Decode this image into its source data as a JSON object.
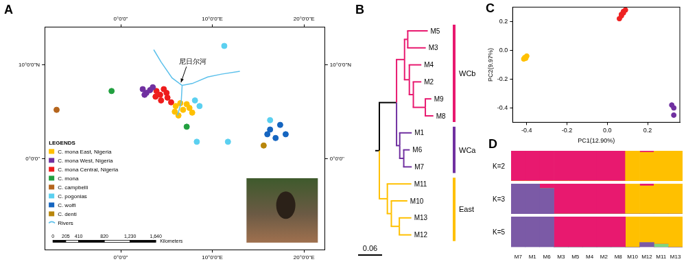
{
  "panel_labels": [
    "A",
    "B",
    "C",
    "D"
  ],
  "map": {
    "xlim": [
      -8.3,
      22.3
    ],
    "ylim": [
      -9.7,
      14
    ],
    "xticks": [
      {
        "value": 0,
        "label": "0°0'0\""
      },
      {
        "value": 10,
        "label": "10°0'0\"E"
      },
      {
        "value": 20,
        "label": "20°0'0\"E"
      }
    ],
    "yticks": [
      {
        "value": 0,
        "label": "0°0'0\""
      },
      {
        "value": 10,
        "label": "10°0'0\"N"
      }
    ],
    "legend_title": "LEGENDS",
    "groups": [
      {
        "name": "C. mona East, Nigeria",
        "color": "#ffc000",
        "points": [
          [
            5.9,
            5.0
          ],
          [
            6.3,
            4.6
          ],
          [
            6.8,
            5.2
          ],
          [
            7.2,
            5.8
          ],
          [
            7.5,
            5.4
          ],
          [
            6.5,
            5.9
          ],
          [
            7.8,
            4.9
          ],
          [
            6.0,
            5.6
          ]
        ]
      },
      {
        "name": "C. mona West, Nigeria",
        "color": "#7030a0",
        "points": [
          [
            2.4,
            7.4
          ],
          [
            2.8,
            7.0
          ],
          [
            3.2,
            7.3
          ],
          [
            2.6,
            6.8
          ],
          [
            3.5,
            7.6
          ]
        ]
      },
      {
        "name": "C. mona Central, Nigeria",
        "color": "#ee1c1c",
        "points": [
          [
            3.9,
            7.2
          ],
          [
            4.3,
            6.8
          ],
          [
            4.7,
            7.4
          ],
          [
            5.1,
            6.5
          ],
          [
            5.5,
            6.0
          ],
          [
            4.4,
            6.2
          ],
          [
            5.0,
            7.0
          ],
          [
            3.8,
            6.6
          ]
        ]
      },
      {
        "name": "C. mona",
        "color": "#22a040",
        "points": [
          [
            -1.0,
            7.2
          ],
          [
            7.2,
            3.4
          ]
        ]
      },
      {
        "name": "C. campbelli",
        "color": "#b5651d",
        "points": [
          [
            -7.0,
            5.2
          ]
        ]
      },
      {
        "name": "C. pogonias",
        "color": "#5bd0f0",
        "points": [
          [
            8.1,
            6.2
          ],
          [
            8.6,
            5.6
          ],
          [
            8.3,
            1.8
          ],
          [
            11.7,
            1.8
          ],
          [
            11.3,
            12.0
          ],
          [
            16.3,
            4.1
          ]
        ]
      },
      {
        "name": "C. wolfi",
        "color": "#1565c0",
        "points": [
          [
            16.3,
            3.1
          ],
          [
            17.4,
            3.6
          ],
          [
            16.9,
            2.2
          ],
          [
            18.0,
            2.6
          ],
          [
            16.0,
            2.6
          ]
        ]
      },
      {
        "name": "C. denti",
        "color": "#b8860b",
        "points": [
          [
            15.6,
            1.4
          ]
        ]
      }
    ],
    "rivers": {
      "name": "Rivers",
      "color": "#5bc0eb",
      "lines": [
        [
          [
            3.6,
            11.6
          ],
          [
            4.4,
            10.3
          ],
          [
            5.6,
            8.6
          ],
          [
            6.7,
            7.8
          ],
          [
            6.6,
            6.0
          ],
          [
            6.2,
            4.6
          ]
        ],
        [
          [
            13.0,
            9.3
          ],
          [
            11.0,
            9.0
          ],
          [
            9.5,
            8.7
          ],
          [
            7.8,
            8.0
          ],
          [
            6.7,
            7.8
          ]
        ]
      ]
    },
    "annotation": {
      "text": "尼日尔河",
      "points_to": [
        6.5,
        7.9
      ]
    },
    "scale_bar": {
      "ticks": [
        0,
        205,
        410,
        820,
        {
          "value": 1230,
          "label": "1,230"
        },
        {
          "value": 1640,
          "label": "1,640"
        }
      ],
      "unit": "Kilometers"
    }
  },
  "tree": {
    "scale_bar": 0.06,
    "root": {
      "color": "#000000",
      "children": [
        {
          "length": 0.043,
          "color": "#000000",
          "children": [
            {
              "length": 0.02,
              "color": "#e8196f",
              "children": [
                {
                  "length": 0.008,
                  "children": [
                    {
                      "name": "M5",
                      "length": 0.05
                    },
                    {
                      "name": "M3",
                      "length": 0.045
                    }
                  ]
                },
                {
                  "length": 0.012,
                  "children": [
                    {
                      "name": "M4",
                      "length": 0.03
                    },
                    {
                      "length": 0.01,
                      "children": [
                        {
                          "name": "M2",
                          "length": 0.02
                        },
                        {
                          "length": 0.03,
                          "children": [
                            {
                              "name": "M9",
                              "length": 0.015
                            },
                            {
                              "name": "M8",
                              "length": 0.02
                            }
                          ]
                        }
                      ]
                    }
                  ]
                }
              ]
            },
            {
              "length": 0.008,
              "color": "#7030a0",
              "children": [
                {
                  "name": "M1",
                  "length": 0.03
                },
                {
                  "length": 0.01,
                  "children": [
                    {
                      "name": "M6",
                      "length": 0.015
                    },
                    {
                      "name": "M7",
                      "length": 0.02
                    }
                  ]
                }
              ]
            }
          ]
        },
        {
          "length": 0.02,
          "color": "#ffc000",
          "children": [
            {
              "name": "M11",
              "length": 0.06
            },
            {
              "length": 0.01,
              "children": [
                {
                  "name": "M10",
                  "length": 0.04
                },
                {
                  "length": 0.02,
                  "children": [
                    {
                      "name": "M13",
                      "length": 0.03
                    },
                    {
                      "name": "M12",
                      "length": 0.03
                    }
                  ]
                }
              ]
            }
          ]
        }
      ]
    },
    "clades": [
      {
        "label": "WCb",
        "color": "#e8196f",
        "from": "M5",
        "to": "M8"
      },
      {
        "label": "WCa",
        "color": "#7030a0",
        "from": "M1",
        "to": "M7"
      },
      {
        "label": "East",
        "color": "#ffc000",
        "from": "M11",
        "to": "M12"
      }
    ]
  },
  "chart_data": [
    {
      "type": "scatter",
      "x_label": "PC1(12.90%)",
      "y_label": "PC2(9.97%)",
      "xlim": [
        -0.47,
        0.36
      ],
      "ylim": [
        -0.5,
        0.3
      ],
      "xticks": [
        -0.4,
        -0.2,
        {
          "value": 0,
          "label": "0.0"
        },
        0.2
      ],
      "yticks": [
        -0.4,
        -0.2,
        {
          "value": 0,
          "label": "0.0"
        },
        0.2
      ],
      "grid": false,
      "series": [
        {
          "color": "#ffc000",
          "x": [
            -0.41,
            -0.4,
            -0.415,
            -0.405
          ],
          "y": [
            -0.05,
            -0.04,
            -0.06,
            -0.055
          ]
        },
        {
          "color": "#ee2222",
          "x": [
            0.06,
            0.07,
            0.08,
            0.09,
            0.07,
            0.08
          ],
          "y": [
            0.22,
            0.25,
            0.27,
            0.28,
            0.24,
            0.26
          ]
        },
        {
          "color": "#7030a0",
          "x": [
            0.32,
            0.33,
            0.33
          ],
          "y": [
            -0.38,
            -0.4,
            -0.45
          ]
        }
      ]
    },
    {
      "type": "bar",
      "title": "K=2",
      "stacked": true,
      "tick_labels": false,
      "ylim": [
        0,
        1
      ],
      "categories": [
        "M7",
        "M1",
        "M6",
        "M3",
        "M5",
        "M4",
        "M2",
        "M8",
        "M10",
        "M12",
        "M11",
        "M13"
      ],
      "series": [
        {
          "color": "#ffc000",
          "values": [
            0,
            0,
            0,
            0,
            0,
            0,
            0,
            0,
            1,
            0.95,
            1,
            1
          ]
        },
        {
          "color": "#e8196f",
          "values": [
            1,
            1,
            1,
            1,
            1,
            1,
            1,
            1,
            0,
            0.05,
            0,
            0
          ]
        }
      ]
    },
    {
      "type": "bar",
      "title": "K=3",
      "stacked": true,
      "tick_labels": false,
      "ylim": [
        0,
        1
      ],
      "categories": [
        "M7",
        "M1",
        "M6",
        "M3",
        "M5",
        "M4",
        "M2",
        "M8",
        "M10",
        "M12",
        "M11",
        "M13"
      ],
      "series": [
        {
          "color": "#7b5aa6",
          "values": [
            1,
            1,
            0.85,
            0,
            0,
            0,
            0,
            0,
            0,
            0,
            0,
            0
          ]
        },
        {
          "color": "#ffc000",
          "values": [
            0,
            0,
            0,
            0,
            0,
            0,
            0,
            0,
            1,
            0.93,
            1,
            1
          ]
        },
        {
          "color": "#e8196f",
          "values": [
            0,
            0,
            0.15,
            1,
            1,
            1,
            1,
            1,
            0,
            0.07,
            0,
            0
          ]
        }
      ]
    },
    {
      "type": "bar",
      "title": "K=5",
      "stacked": true,
      "tick_labels": "x",
      "ylim": [
        0,
        1
      ],
      "categories": [
        "M7",
        "M1",
        "M6",
        "M3",
        "M5",
        "M4",
        "M2",
        "M8",
        "M10",
        "M12",
        "M11",
        "M13"
      ],
      "series": [
        {
          "color": "#7b5aa6",
          "values": [
            1,
            1,
            1,
            0,
            0,
            0,
            0,
            0,
            0,
            0.15,
            0,
            0
          ]
        },
        {
          "color": "#7fd67f",
          "values": [
            0,
            0,
            0,
            0,
            0,
            0,
            0,
            0,
            0,
            0,
            0.1,
            0
          ]
        },
        {
          "color": "#e8196f",
          "values": [
            0,
            0,
            0,
            1,
            1,
            1,
            1,
            1,
            0,
            0,
            0,
            0
          ]
        },
        {
          "color": "#ffc000",
          "values": [
            0,
            0,
            0,
            0,
            0,
            0,
            0,
            0,
            1,
            0.85,
            0.9,
            1
          ]
        }
      ]
    }
  ]
}
